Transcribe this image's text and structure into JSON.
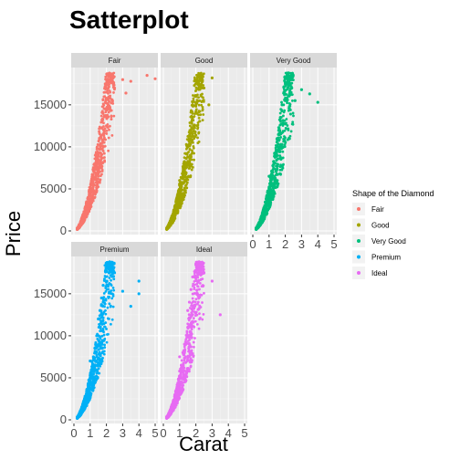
{
  "chart_data": {
    "type": "scatter",
    "title": "Satterplot",
    "xlabel": "Carat",
    "ylabel": "Price",
    "xlim": [
      0,
      5
    ],
    "ylim": [
      0,
      19000
    ],
    "x_ticks": [
      0,
      1,
      2,
      3,
      4,
      5
    ],
    "y_ticks": [
      0,
      5000,
      10000,
      15000
    ],
    "y_tick_labels": [
      "0",
      "5000",
      "10000",
      "15000"
    ],
    "grid": true,
    "legend": {
      "title": "Shape of the Diamond",
      "placement": "right"
    },
    "series": [
      {
        "name": "Fair",
        "color": "#F8766D",
        "points": [
          [
            0.25,
            400
          ],
          [
            0.3,
            500
          ],
          [
            0.4,
            700
          ],
          [
            0.5,
            1100
          ],
          [
            0.6,
            1500
          ],
          [
            0.7,
            1900
          ],
          [
            0.75,
            2200
          ],
          [
            0.8,
            2600
          ],
          [
            0.9,
            3100
          ],
          [
            1.0,
            3600
          ],
          [
            1.0,
            4200
          ],
          [
            1.0,
            5200
          ],
          [
            1.1,
            4600
          ],
          [
            1.2,
            5400
          ],
          [
            1.3,
            6200
          ],
          [
            1.5,
            6800
          ],
          [
            1.5,
            8500
          ],
          [
            1.6,
            9800
          ],
          [
            1.7,
            10400
          ],
          [
            1.8,
            11500
          ],
          [
            2.0,
            12500
          ],
          [
            2.0,
            14500
          ],
          [
            2.0,
            16500
          ],
          [
            2.1,
            15600
          ],
          [
            2.2,
            16000
          ],
          [
            2.5,
            17000
          ],
          [
            3.0,
            18000
          ],
          [
            3.2,
            16400
          ],
          [
            3.5,
            17800
          ],
          [
            4.5,
            18500
          ],
          [
            5.0,
            18100
          ]
        ]
      },
      {
        "name": "Good",
        "color": "#A3A500",
        "points": [
          [
            0.25,
            350
          ],
          [
            0.3,
            500
          ],
          [
            0.4,
            650
          ],
          [
            0.5,
            1000
          ],
          [
            0.6,
            1500
          ],
          [
            0.7,
            2000
          ],
          [
            0.8,
            2600
          ],
          [
            0.9,
            3300
          ],
          [
            1.0,
            3800
          ],
          [
            1.0,
            4800
          ],
          [
            1.0,
            6000
          ],
          [
            1.1,
            5200
          ],
          [
            1.2,
            6500
          ],
          [
            1.3,
            7700
          ],
          [
            1.5,
            8800
          ],
          [
            1.5,
            10000
          ],
          [
            1.6,
            11000
          ],
          [
            1.7,
            12000
          ],
          [
            1.8,
            13500
          ],
          [
            2.0,
            14000
          ],
          [
            2.0,
            16000
          ],
          [
            2.1,
            17500
          ],
          [
            2.2,
            18600
          ],
          [
            2.4,
            18500
          ],
          [
            2.5,
            17000
          ],
          [
            2.8,
            15000
          ],
          [
            3.0,
            18200
          ]
        ]
      },
      {
        "name": "Very Good",
        "color": "#00BF7D",
        "points": [
          [
            0.25,
            350
          ],
          [
            0.3,
            500
          ],
          [
            0.4,
            700
          ],
          [
            0.5,
            1100
          ],
          [
            0.6,
            1600
          ],
          [
            0.7,
            2100
          ],
          [
            0.8,
            2700
          ],
          [
            0.9,
            3400
          ],
          [
            1.0,
            4000
          ],
          [
            1.0,
            5000
          ],
          [
            1.0,
            6500
          ],
          [
            1.1,
            5600
          ],
          [
            1.2,
            7000
          ],
          [
            1.3,
            8000
          ],
          [
            1.5,
            9500
          ],
          [
            1.5,
            11000
          ],
          [
            1.6,
            12000
          ],
          [
            1.7,
            13500
          ],
          [
            1.8,
            15000
          ],
          [
            2.0,
            15500
          ],
          [
            2.0,
            17500
          ],
          [
            2.1,
            18500
          ],
          [
            2.2,
            18800
          ],
          [
            2.4,
            17000
          ],
          [
            2.6,
            15500
          ],
          [
            3.0,
            16800
          ],
          [
            3.5,
            16300
          ],
          [
            4.0,
            15300
          ]
        ]
      },
      {
        "name": "Premium",
        "color": "#00B0F6",
        "points": [
          [
            0.25,
            350
          ],
          [
            0.3,
            500
          ],
          [
            0.4,
            700
          ],
          [
            0.5,
            1200
          ],
          [
            0.6,
            1700
          ],
          [
            0.7,
            2200
          ],
          [
            0.8,
            2900
          ],
          [
            0.9,
            3600
          ],
          [
            1.0,
            4200
          ],
          [
            1.0,
            5300
          ],
          [
            1.0,
            7000
          ],
          [
            1.1,
            6000
          ],
          [
            1.2,
            7500
          ],
          [
            1.3,
            8500
          ],
          [
            1.5,
            10000
          ],
          [
            1.5,
            12000
          ],
          [
            1.6,
            13000
          ],
          [
            1.7,
            14500
          ],
          [
            1.8,
            16000
          ],
          [
            2.0,
            16500
          ],
          [
            2.0,
            18000
          ],
          [
            2.1,
            18700
          ],
          [
            2.2,
            18800
          ],
          [
            2.5,
            17500
          ],
          [
            3.0,
            15300
          ],
          [
            3.5,
            13500
          ],
          [
            4.0,
            15000
          ],
          [
            4.0,
            16500
          ]
        ]
      },
      {
        "name": "Ideal",
        "color": "#E76BF3",
        "points": [
          [
            0.2,
            350
          ],
          [
            0.3,
            550
          ],
          [
            0.4,
            750
          ],
          [
            0.5,
            1300
          ],
          [
            0.6,
            1800
          ],
          [
            0.7,
            2400
          ],
          [
            0.8,
            3100
          ],
          [
            0.9,
            3800
          ],
          [
            1.0,
            4500
          ],
          [
            1.0,
            5800
          ],
          [
            1.0,
            7500
          ],
          [
            1.1,
            6500
          ],
          [
            1.2,
            8000
          ],
          [
            1.3,
            9000
          ],
          [
            1.5,
            11000
          ],
          [
            1.5,
            13000
          ],
          [
            1.6,
            14000
          ],
          [
            1.7,
            15500
          ],
          [
            1.8,
            17000
          ],
          [
            2.0,
            17000
          ],
          [
            2.0,
            18500
          ],
          [
            2.1,
            18700
          ],
          [
            2.2,
            18800
          ],
          [
            2.5,
            17500
          ],
          [
            3.0,
            16500
          ],
          [
            3.5,
            12500
          ]
        ]
      }
    ]
  }
}
